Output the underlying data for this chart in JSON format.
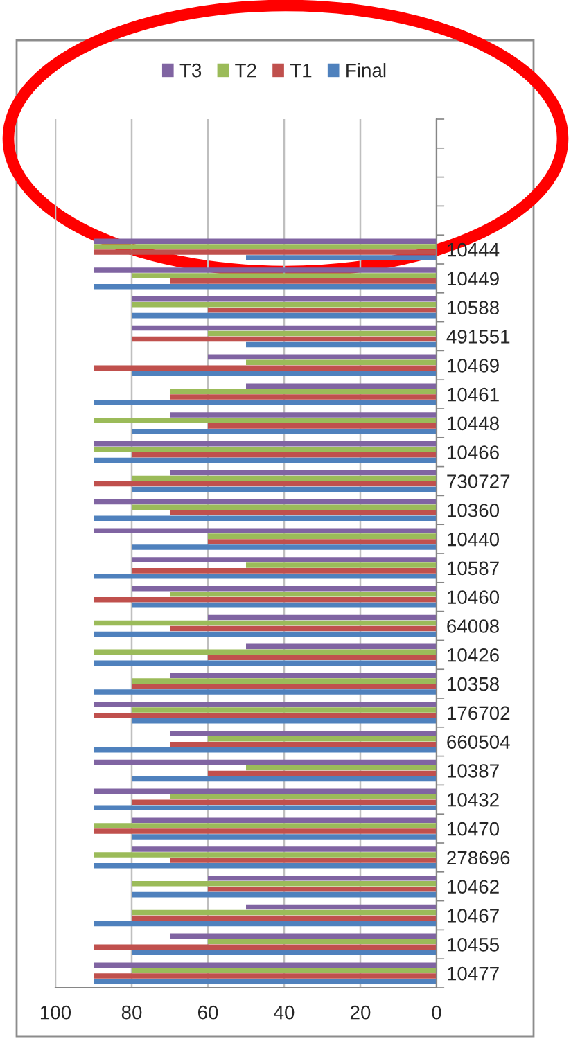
{
  "chart_data": {
    "type": "bar",
    "orientation": "horizontal",
    "categories": [
      null,
      null,
      null,
      null,
      "10444",
      "10449",
      "10588",
      "491551",
      "10469",
      "10461",
      "10448",
      "10466",
      "730727",
      "10360",
      "10440",
      "10587",
      "10460",
      "64008",
      "10426",
      "10358",
      "176702",
      "660504",
      "10387",
      "10432",
      "10470",
      "278696",
      "10462",
      "10467",
      "10455",
      "10477"
    ],
    "series": [
      {
        "name": "T3",
        "color": "#8064a2",
        "values": [
          null,
          null,
          null,
          null,
          90,
          90,
          80,
          80,
          60,
          50,
          70,
          90,
          70,
          90,
          90,
          80,
          80,
          60,
          50,
          70,
          90,
          70,
          90,
          90,
          80,
          80,
          60,
          50,
          70,
          90
        ]
      },
      {
        "name": "T2",
        "color": "#9bbb59",
        "values": [
          null,
          null,
          null,
          null,
          90,
          80,
          80,
          60,
          50,
          70,
          90,
          90,
          80,
          80,
          60,
          50,
          70,
          90,
          90,
          80,
          80,
          60,
          50,
          70,
          90,
          90,
          80,
          80,
          60,
          80
        ]
      },
      {
        "name": "T1",
        "color": "#c0504d",
        "values": [
          null,
          null,
          null,
          null,
          90,
          70,
          60,
          80,
          90,
          70,
          60,
          80,
          90,
          70,
          60,
          80,
          90,
          70,
          60,
          80,
          90,
          70,
          60,
          80,
          90,
          70,
          60,
          80,
          90,
          90
        ]
      },
      {
        "name": "Final",
        "color": "#4f81bd",
        "values": [
          null,
          null,
          null,
          null,
          50,
          90,
          80,
          50,
          80,
          90,
          80,
          90,
          80,
          90,
          80,
          90,
          80,
          90,
          90,
          90,
          80,
          90,
          80,
          90,
          80,
          90,
          80,
          90,
          80,
          90
        ]
      }
    ],
    "xlim": [
      100,
      0
    ],
    "xticks": [
      0,
      20,
      40,
      60,
      80,
      100
    ],
    "grid": "x",
    "legend": "top"
  }
}
